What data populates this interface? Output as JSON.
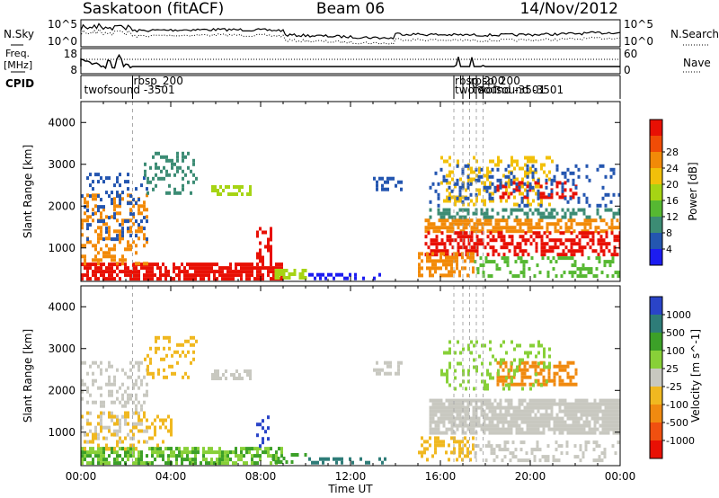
{
  "header": {
    "station": "Saskatoon (fitACF)",
    "beam": "Beam 06",
    "date": "14/Nov/2012"
  },
  "strip_labels": {
    "nsky": "N.Sky",
    "nsearch": "N.Search",
    "freq_line1": "Freq.",
    "freq_line2": "[MHz]",
    "nave": "Nave",
    "cpid": "CPID"
  },
  "strip_ticks": {
    "noise_left": [
      "10^5",
      "10^0"
    ],
    "noise_right": [
      "10^5",
      "10^0"
    ],
    "freq_left": [
      "18",
      "8"
    ],
    "freq_right": [
      "60",
      "0"
    ]
  },
  "cpid_labels": [
    {
      "text": "rbsp_200",
      "hour": 2.3,
      "row": 0
    },
    {
      "text": "twofsound -3501",
      "hour": 0.1,
      "row": 1
    },
    {
      "text": "rbsp_200",
      "hour": 16.6,
      "row": 0
    },
    {
      "text": "twofsound -3501",
      "hour": 16.6,
      "row": 1
    },
    {
      "text": "rbsp_200",
      "hour": 17.3,
      "row": 0
    },
    {
      "text": "twofsound -3501",
      "hour": 17.4,
      "row": 1
    }
  ],
  "cpid_change_hours": [
    2.3,
    16.6,
    17.0,
    17.3,
    17.6,
    17.9
  ],
  "chart_data": [
    {
      "type": "heatmap",
      "title": "",
      "xlabel": "",
      "ylabel": "Slant Range [km]",
      "xlim": [
        0,
        24
      ],
      "ylim": [
        200,
        4500
      ],
      "yticks": [
        "1000",
        "2000",
        "3000",
        "4000"
      ],
      "colorbar_label": "Power [dB]",
      "colorbar_ticks": [
        "4",
        "8",
        "12",
        "16",
        "20",
        "24",
        "28"
      ],
      "colorbar_colors": [
        "#1c1cf0",
        "#2456b0",
        "#3c8c74",
        "#56b832",
        "#a6d414",
        "#f2c00a",
        "#f28a08",
        "#f04c06",
        "#e81004"
      ],
      "blobs": [
        {
          "h0": 0.0,
          "h1": 9.0,
          "r0": 250,
          "r1": 650,
          "color": "#e81004",
          "density": 0.75
        },
        {
          "h0": 0.0,
          "h1": 3.0,
          "r0": 600,
          "r1": 2300,
          "color": "#f28a08",
          "density": 0.35
        },
        {
          "h0": 0.0,
          "h1": 3.0,
          "r0": 1200,
          "r1": 2800,
          "color": "#2456b0",
          "density": 0.2
        },
        {
          "h0": 2.8,
          "h1": 5.2,
          "r0": 2300,
          "r1": 3300,
          "color": "#3c8c74",
          "density": 0.35
        },
        {
          "h0": 5.8,
          "h1": 7.6,
          "r0": 2300,
          "r1": 2500,
          "color": "#a6d414",
          "density": 0.5
        },
        {
          "h0": 7.8,
          "h1": 8.5,
          "r0": 700,
          "r1": 1500,
          "color": "#e81004",
          "density": 0.4
        },
        {
          "h0": 8.5,
          "h1": 10.0,
          "r0": 250,
          "r1": 500,
          "color": "#a6d414",
          "density": 0.55
        },
        {
          "h0": 10.0,
          "h1": 13.5,
          "r0": 250,
          "r1": 400,
          "color": "#1c1cf0",
          "density": 0.35
        },
        {
          "h0": 13.0,
          "h1": 14.3,
          "r0": 2400,
          "r1": 2700,
          "color": "#2456b0",
          "density": 0.45
        },
        {
          "h0": 15.3,
          "h1": 24.0,
          "r0": 1400,
          "r1": 1700,
          "color": "#f28a08",
          "density": 0.65
        },
        {
          "h0": 15.3,
          "h1": 24.0,
          "r0": 850,
          "r1": 1400,
          "color": "#e81004",
          "density": 0.5
        },
        {
          "h0": 15.5,
          "h1": 24.0,
          "r0": 1700,
          "r1": 1950,
          "color": "#3c8c74",
          "density": 0.45
        },
        {
          "h0": 15.0,
          "h1": 17.5,
          "r0": 300,
          "r1": 900,
          "color": "#f28a08",
          "density": 0.55
        },
        {
          "h0": 17.5,
          "h1": 24.0,
          "r0": 300,
          "r1": 800,
          "color": "#56b832",
          "density": 0.35
        },
        {
          "h0": 16.0,
          "h1": 21.0,
          "r0": 2000,
          "r1": 3200,
          "color": "#f2c00a",
          "density": 0.3
        },
        {
          "h0": 18.5,
          "h1": 22.0,
          "r0": 2200,
          "r1": 2600,
          "color": "#e81004",
          "density": 0.4
        },
        {
          "h0": 15.5,
          "h1": 24.0,
          "r0": 2000,
          "r1": 3000,
          "color": "#2456b0",
          "density": 0.18
        }
      ]
    },
    {
      "type": "heatmap",
      "title": "",
      "xlabel": "Time UT",
      "ylabel": "Slant Range [km]",
      "xlim": [
        0,
        24
      ],
      "ylim": [
        200,
        4500
      ],
      "xticks": [
        "00:00",
        "04:00",
        "08:00",
        "12:00",
        "16:00",
        "20:00",
        "00:00"
      ],
      "yticks": [
        "1000",
        "2000",
        "3000",
        "4000"
      ],
      "colorbar_label": "Velocity [m s^-1]",
      "colorbar_ticks": [
        "1000",
        "500",
        "100",
        "25",
        "-25",
        "-100",
        "-500",
        "-1000"
      ],
      "colorbar_colors": [
        "#2a44c8",
        "#2e7c78",
        "#3ca028",
        "#88d038",
        "#c8c8c0",
        "#f0b820",
        "#f08a10",
        "#f05010",
        "#e81004"
      ],
      "blobs": [
        {
          "h0": 0.0,
          "h1": 3.0,
          "r0": 800,
          "r1": 2700,
          "color": "#c8c8c0",
          "density": 0.3
        },
        {
          "h0": 0.0,
          "h1": 9.0,
          "r0": 250,
          "r1": 650,
          "color": "#88d038",
          "density": 0.45
        },
        {
          "h0": 0.0,
          "h1": 9.0,
          "r0": 250,
          "r1": 650,
          "color": "#3ca028",
          "density": 0.3
        },
        {
          "h0": 0.0,
          "h1": 4.0,
          "r0": 600,
          "r1": 1500,
          "color": "#f0b820",
          "density": 0.2
        },
        {
          "h0": 2.8,
          "h1": 5.2,
          "r0": 2300,
          "r1": 3300,
          "color": "#f0b820",
          "density": 0.3
        },
        {
          "h0": 5.8,
          "h1": 7.6,
          "r0": 2300,
          "r1": 2500,
          "color": "#c8c8c0",
          "density": 0.6
        },
        {
          "h0": 7.8,
          "h1": 8.3,
          "r0": 700,
          "r1": 1400,
          "color": "#2a44c8",
          "density": 0.3
        },
        {
          "h0": 8.5,
          "h1": 10.0,
          "r0": 250,
          "r1": 500,
          "color": "#3ca028",
          "density": 0.45
        },
        {
          "h0": 10.0,
          "h1": 13.5,
          "r0": 250,
          "r1": 400,
          "color": "#2e7c78",
          "density": 0.3
        },
        {
          "h0": 15.5,
          "h1": 24.0,
          "r0": 950,
          "r1": 1800,
          "color": "#c8c8c0",
          "density": 0.85
        },
        {
          "h0": 15.0,
          "h1": 17.5,
          "r0": 300,
          "r1": 900,
          "color": "#f0b820",
          "density": 0.4
        },
        {
          "h0": 17.5,
          "h1": 24.0,
          "r0": 300,
          "r1": 800,
          "color": "#c8c8c0",
          "density": 0.3
        },
        {
          "h0": 18.5,
          "h1": 22.0,
          "r0": 2100,
          "r1": 2700,
          "color": "#f08a10",
          "density": 0.55
        },
        {
          "h0": 16.0,
          "h1": 21.0,
          "r0": 2000,
          "r1": 3200,
          "color": "#88d038",
          "density": 0.2
        },
        {
          "h0": 13.0,
          "h1": 14.3,
          "r0": 2400,
          "r1": 2700,
          "color": "#c8c8c0",
          "density": 0.4
        }
      ]
    }
  ]
}
